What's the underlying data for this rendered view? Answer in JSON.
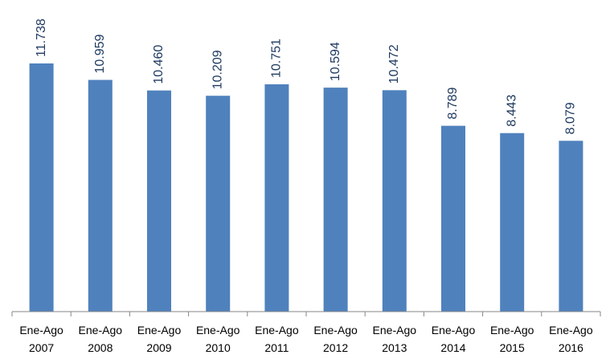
{
  "chart_data": {
    "type": "bar",
    "categories": [
      "Ene-Ago 2007",
      "Ene-Ago 2008",
      "Ene-Ago 2009",
      "Ene-Ago 2010",
      "Ene-Ago 2011",
      "Ene-Ago 2012",
      "Ene-Ago 2013",
      "Ene-Ago 2014",
      "Ene-Ago 2015",
      "Ene-Ago 2016"
    ],
    "values": [
      11738,
      10959,
      10460,
      10209,
      10751,
      10594,
      10472,
      8789,
      8443,
      8079
    ],
    "value_labels": [
      "11.738",
      "10.959",
      "10.460",
      "10.209",
      "10.751",
      "10.594",
      "10.472",
      "8.789",
      "8.443",
      "8.079"
    ],
    "color": "#4f81bd"
  }
}
